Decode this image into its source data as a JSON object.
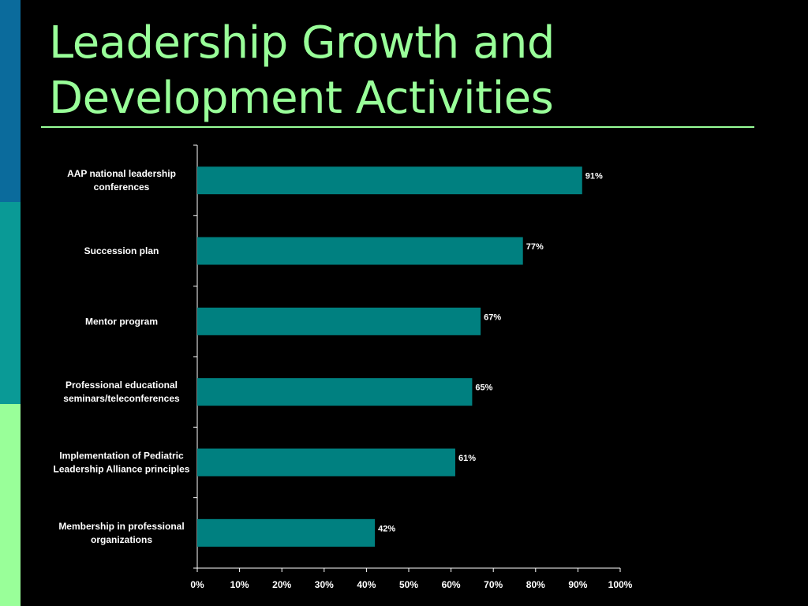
{
  "slide": {
    "title_line1": "Leadership Growth and",
    "title_line2": "Development Activities",
    "colors": {
      "title": "#99ff99",
      "band_top": "#0b6b9c",
      "band_mid": "#0a9a96",
      "band_bottom": "#99ff99",
      "bar": "#008080",
      "background": "#000000"
    }
  },
  "chart_data": {
    "type": "bar",
    "orientation": "horizontal",
    "categories": [
      "AAP national leadership conferences",
      "Succession plan",
      "Mentor program",
      "Professional educational seminars/teleconferences",
      "Implementation of Pediatric Leadership Alliance principles",
      "Membership in professional organizations"
    ],
    "category_label_lines": [
      [
        "AAP national leadership",
        "conferences"
      ],
      [
        "Succession plan"
      ],
      [
        "Mentor program"
      ],
      [
        "Professional educational",
        "seminars/teleconferences"
      ],
      [
        "Implementation of Pediatric",
        "Leadership Alliance principles"
      ],
      [
        "Membership in professional",
        "organizations"
      ]
    ],
    "values": [
      91,
      77,
      67,
      65,
      61,
      42
    ],
    "data_labels": [
      "91%",
      "77%",
      "67%",
      "65%",
      "61%",
      "42%"
    ],
    "xticks": [
      "0%",
      "10%",
      "20%",
      "30%",
      "40%",
      "50%",
      "60%",
      "70%",
      "80%",
      "90%",
      "100%"
    ],
    "xlim": [
      0,
      100
    ],
    "grid": false,
    "legend": "none",
    "title": "",
    "xlabel": "",
    "ylabel": ""
  }
}
